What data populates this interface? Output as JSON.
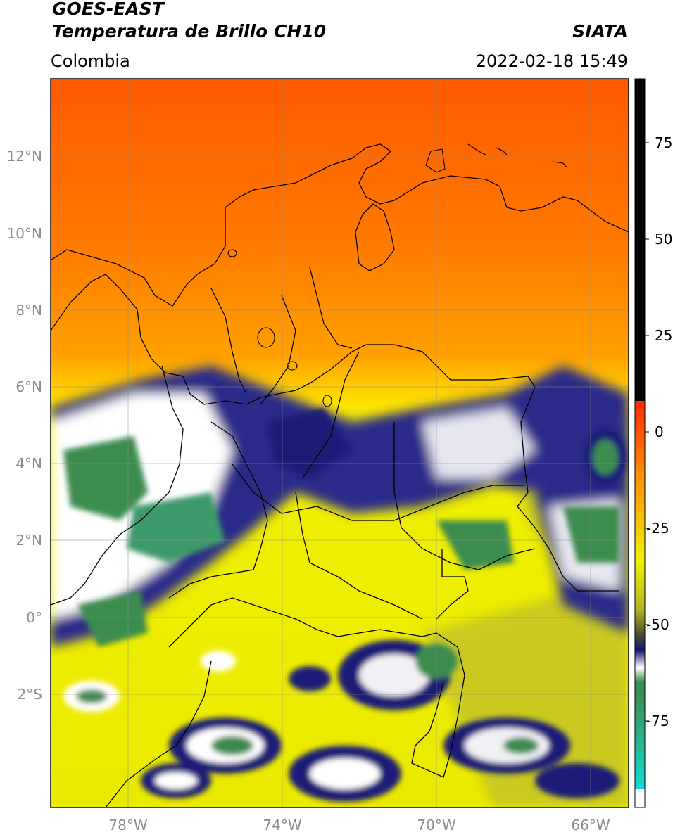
{
  "header": {
    "satellite": "GOES-EAST",
    "product": "Temperatura de Brillo CH10",
    "region": "Colombia",
    "agency": "SIATA",
    "datetime": "2022-02-18 15:49"
  },
  "map": {
    "lat_ticks": [
      "12°N",
      "10°N",
      "8°N",
      "6°N",
      "4°N",
      "2°N",
      "0°",
      "2°S"
    ],
    "lon_ticks": [
      "78°W",
      "74°W",
      "70°W",
      "66°W"
    ]
  },
  "colorbar": {
    "tick_labels": [
      "75",
      "50",
      "25",
      "0",
      "-25",
      "-50",
      "-75"
    ],
    "colors": {
      "hot": "#000000",
      "red": "#f01e00",
      "orange": "#ff8c00",
      "yellow": "#f0f000",
      "olive": "#b4b428",
      "navy": "#141470",
      "white": "#ffffff",
      "green": "#3c8c50",
      "cyan": "#14dcdc"
    }
  }
}
